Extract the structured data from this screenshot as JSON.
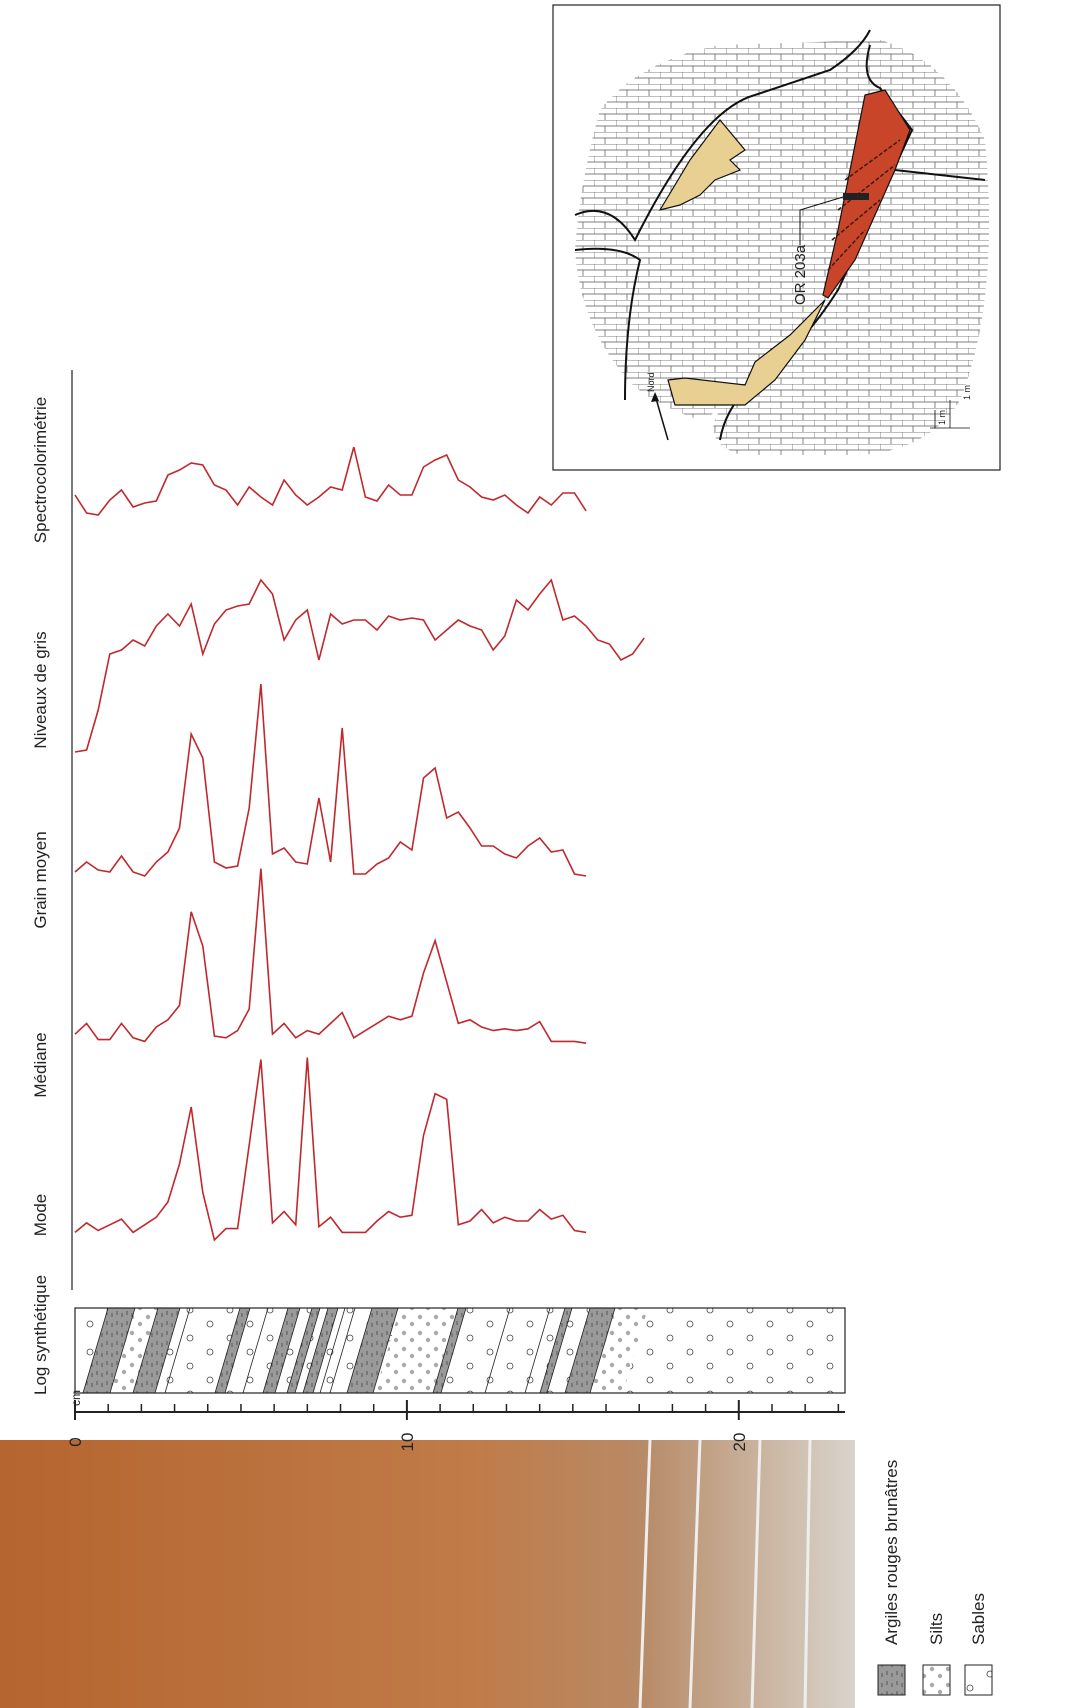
{
  "chart_data": {
    "type": "line",
    "x_label": "cm",
    "log_label": "Log synthétique",
    "color": "#c0282d",
    "x": [
      0,
      0.35,
      0.7,
      1.05,
      1.4,
      1.75,
      2.1,
      2.45,
      2.8,
      3.15,
      3.5,
      3.85,
      4.2,
      4.55,
      4.9,
      5.25,
      5.6,
      5.95,
      6.3,
      6.65,
      7,
      7.35,
      7.7,
      8.05,
      8.4,
      8.75,
      9.1,
      9.45,
      9.8,
      10.15,
      10.5,
      10.85,
      11.2,
      11.55,
      11.9,
      12.25,
      12.6,
      12.95,
      13.3,
      13.65,
      14,
      14.35,
      14.7,
      15.05,
      15.4,
      15.75,
      16.1,
      16.45,
      16.8,
      17.15
    ],
    "xlim": [
      0,
      23.2
    ],
    "xticks": [
      0,
      10,
      20
    ],
    "minor_xticks": [
      1,
      2,
      3,
      4,
      5,
      6,
      7,
      8,
      9,
      11,
      12,
      13,
      14,
      15,
      16,
      17,
      18,
      19,
      21,
      22,
      23
    ],
    "series": [
      {
        "name": "Mode",
        "values": [
          4,
          9,
          5,
          8,
          11,
          4,
          8,
          12,
          20,
          40,
          70,
          25,
          0,
          6,
          6,
          50,
          95,
          9,
          15,
          8,
          96,
          7,
          12,
          4,
          4,
          4,
          10,
          15,
          12,
          13,
          55,
          77,
          74,
          8,
          10,
          16,
          9,
          12,
          10,
          10,
          16,
          11,
          13,
          5,
          4,
          null,
          null,
          null,
          null,
          null
        ]
      },
      {
        "name": "Médiane",
        "values": [
          6,
          12,
          3,
          3,
          12,
          4,
          2,
          10,
          14,
          22,
          74,
          55,
          5,
          4,
          8,
          20,
          98,
          6,
          12,
          4,
          8,
          6,
          12,
          18,
          4,
          8,
          12,
          16,
          14,
          16,
          40,
          58,
          35,
          12,
          14,
          10,
          8,
          9,
          8,
          9,
          13,
          2,
          2,
          2,
          1,
          null,
          null,
          null,
          null,
          null
        ]
      },
      {
        "name": "Grain moyen",
        "values": [
          3,
          8,
          4,
          3,
          11,
          3,
          1,
          8,
          13,
          25,
          72,
          60,
          8,
          5,
          6,
          35,
          97,
          12,
          15,
          8,
          7,
          40,
          8,
          75,
          2,
          2,
          7,
          10,
          18,
          14,
          50,
          55,
          30,
          33,
          25,
          16,
          16,
          12,
          10,
          16,
          20,
          13,
          14,
          2,
          1,
          null,
          null,
          null,
          null,
          null
        ]
      },
      {
        "name": "Niveaux de gris",
        "values": [
          29,
          30,
          50,
          78,
          80,
          85,
          82,
          92,
          98,
          92,
          103,
          78,
          93,
          100,
          102,
          103,
          115,
          108,
          85,
          95,
          100,
          75,
          98,
          93,
          95,
          95,
          90,
          97,
          95,
          96,
          95,
          85,
          90,
          95,
          92,
          90,
          80,
          87,
          105,
          100,
          108,
          115,
          95,
          97,
          92,
          85,
          83,
          75,
          78,
          86
        ]
      },
      {
        "name": "Spectrocolorimétrie",
        "values": [
          20,
          2,
          0,
          15,
          25,
          8,
          12,
          14,
          40,
          45,
          52,
          50,
          30,
          25,
          10,
          28,
          18,
          10,
          35,
          20,
          10,
          18,
          28,
          25,
          68,
          18,
          14,
          30,
          20,
          20,
          48,
          55,
          60,
          35,
          28,
          18,
          15,
          20,
          10,
          2,
          18,
          10,
          22,
          22,
          4,
          null,
          null,
          null,
          null,
          null
        ]
      }
    ]
  },
  "legend": [
    "Argiles rouges brunâtres",
    "Silts",
    "Sables"
  ],
  "map": {
    "sample": "OR 203a",
    "north": "Nord",
    "scale_x": "1 m",
    "scale_y": "1 m"
  }
}
